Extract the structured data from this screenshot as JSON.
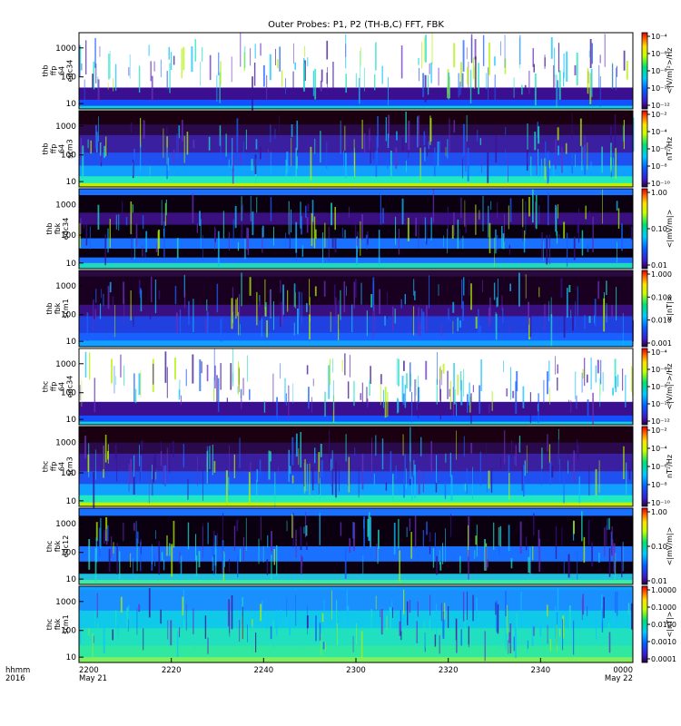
{
  "title": "Outer Probes: P1, P2 (TH-B,C) FFT, FBK",
  "time_axis": {
    "corner_label_line1": "hhmm",
    "corner_label_line2": "2016",
    "ticks": [
      "2200",
      "2220",
      "2240",
      "2300",
      "2320",
      "2340",
      "0000"
    ],
    "first_date": "May 21",
    "last_date": "May 22"
  },
  "chart_data": [
    {
      "type": "heatmap",
      "panel": "thb ffp 64 edc34",
      "label_lines": [
        "thb",
        "ffp",
        "64",
        "edc34"
      ],
      "y_scale": "log",
      "y_ticks": [
        "1000",
        "100",
        "10"
      ],
      "colorbar_unit": "<|V/m|²>/Hz",
      "colorbar_ticks": [
        "10⁻⁴",
        "10⁻⁶",
        "10⁻⁸",
        "10⁻¹⁰",
        "10⁻¹²"
      ]
    },
    {
      "type": "heatmap",
      "panel": "thb ffp 64 scm3",
      "label_lines": [
        "thb",
        "ffp",
        "64",
        "scm3"
      ],
      "y_scale": "log",
      "y_ticks": [
        "1000",
        "100",
        "10"
      ],
      "colorbar_unit": "nT²/Hz",
      "colorbar_ticks": [
        "10⁻²",
        "10⁻⁴",
        "10⁻⁶",
        "10⁻⁸",
        "10⁻¹⁰"
      ]
    },
    {
      "type": "heatmap",
      "panel": "thb fbk edc34",
      "label_lines": [
        "thb",
        "fbk",
        "edc34"
      ],
      "y_scale": "log",
      "y_ticks": [
        "1000",
        "100",
        "10"
      ],
      "colorbar_unit": "<|mV/m|>",
      "colorbar_ticks": [
        "1.00",
        "0.10",
        "0.01"
      ]
    },
    {
      "type": "heatmap",
      "panel": "thb fbk scm1",
      "label_lines": [
        "thb",
        "fbk",
        "scm1"
      ],
      "y_scale": "log",
      "y_ticks": [
        "1000",
        "100",
        "10"
      ],
      "colorbar_unit": "<|nT|>",
      "colorbar_ticks": [
        "1.000",
        "0.100",
        "0.010",
        "0.001"
      ]
    },
    {
      "type": "heatmap",
      "panel": "thc ffp 64 edc34",
      "label_lines": [
        "thc",
        "ffp",
        "64",
        "edc34"
      ],
      "y_scale": "log",
      "y_ticks": [
        "1000",
        "100",
        "10"
      ],
      "colorbar_unit": "<|V/m|²>/Hz",
      "colorbar_ticks": [
        "10⁻⁴",
        "10⁻⁶",
        "10⁻⁸",
        "10⁻¹⁰",
        "10⁻¹²"
      ]
    },
    {
      "type": "heatmap",
      "panel": "thc ffp 64 scm3",
      "label_lines": [
        "thc",
        "ffp",
        "64",
        "scm3"
      ],
      "y_scale": "log",
      "y_ticks": [
        "1000",
        "100",
        "10"
      ],
      "colorbar_unit": "nT²/Hz",
      "colorbar_ticks": [
        "10⁻²",
        "10⁻⁴",
        "10⁻⁶",
        "10⁻⁸",
        "10⁻¹⁰"
      ]
    },
    {
      "type": "heatmap",
      "panel": "thc fbk edc12",
      "label_lines": [
        "thc",
        "fbk",
        "edc12"
      ],
      "y_scale": "log",
      "y_ticks": [
        "1000",
        "100",
        "10"
      ],
      "colorbar_unit": "<|mV/m|>",
      "colorbar_ticks": [
        "1.00",
        "0.10",
        "0.01"
      ]
    },
    {
      "type": "heatmap",
      "panel": "thc fbk scm1",
      "label_lines": [
        "thc",
        "fbk",
        "scm1"
      ],
      "y_scale": "log",
      "y_ticks": [
        "1000",
        "100",
        "10"
      ],
      "colorbar_unit": "<|nT|>",
      "colorbar_ticks": [
        "1.0000",
        "0.1000",
        "0.0100",
        "0.0010",
        "0.0001"
      ]
    }
  ]
}
